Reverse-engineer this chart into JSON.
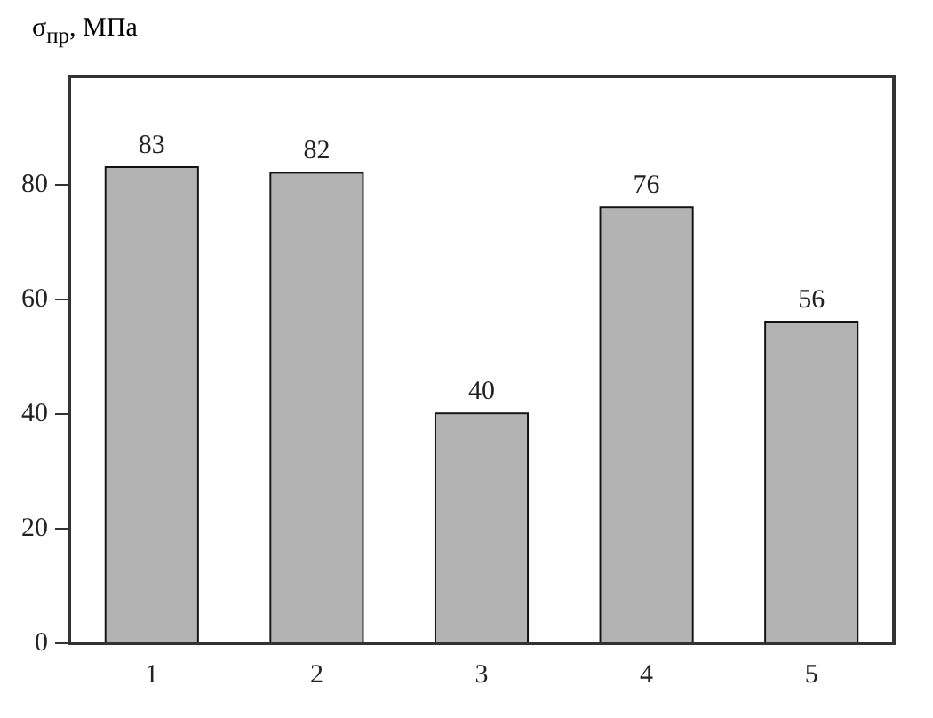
{
  "chart_data": {
    "type": "bar",
    "ylabel": "σ$_{пр}$, МПа",
    "categories": [
      "1",
      "2",
      "3",
      "4",
      "5"
    ],
    "values": [
      83,
      82,
      40,
      76,
      56
    ],
    "color": "#b3b3b3",
    "ylim": [
      0,
      99
    ],
    "yticks": [
      0,
      20,
      40,
      60,
      80
    ],
    "grid": false,
    "data_labels": true
  }
}
